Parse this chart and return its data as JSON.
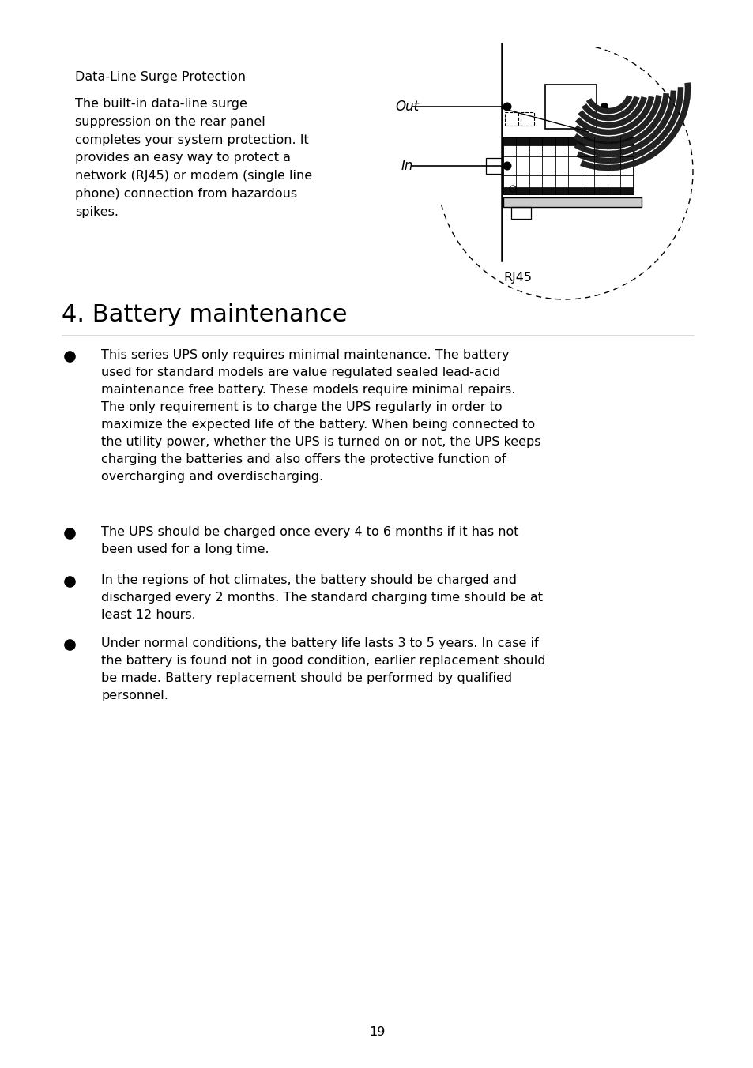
{
  "bg_color": "#ffffff",
  "page_width": 9.54,
  "page_height": 13.52,
  "section_title_top": "Data-Line Surge Protection",
  "body_text_top": "The built-in data-line surge\nsuppression on the rear panel\ncompletes your system protection. It\nprovides an easy way to protect a\nnetwork (RJ45) or modem (single line\nphone) connection from hazardous\nspikes.",
  "rj45_label": "RJ45",
  "section_heading": "4. Battery maintenance",
  "section_heading_fontsize": 22,
  "bullets": [
    "This series UPS only requires minimal maintenance. The battery\nused for standard models are value regulated sealed lead-acid\nmaintenance free battery. These models require minimal repairs.\nThe only requirement is to charge the UPS regularly in order to\nmaximize the expected life of the battery. When being connected to\nthe utility power, whether the UPS is turned on or not, the UPS keeps\ncharging the batteries and also offers the protective function of\novercharging and overdischarging.",
    "The UPS should be charged once every 4 to 6 months if it has not\nbeen used for a long time.",
    "In the regions of hot climates, the battery should be charged and\ndischarged every 2 months. The standard charging time should be at\nleast 12 hours.",
    "Under normal conditions, the battery life lasts 3 to 5 years. In case if\nthe battery is found not in good condition, earlier replacement should\nbe made. Battery replacement should be performed by qualified\npersonnel."
  ],
  "bullet_fontsize": 11.5,
  "page_number": "19"
}
